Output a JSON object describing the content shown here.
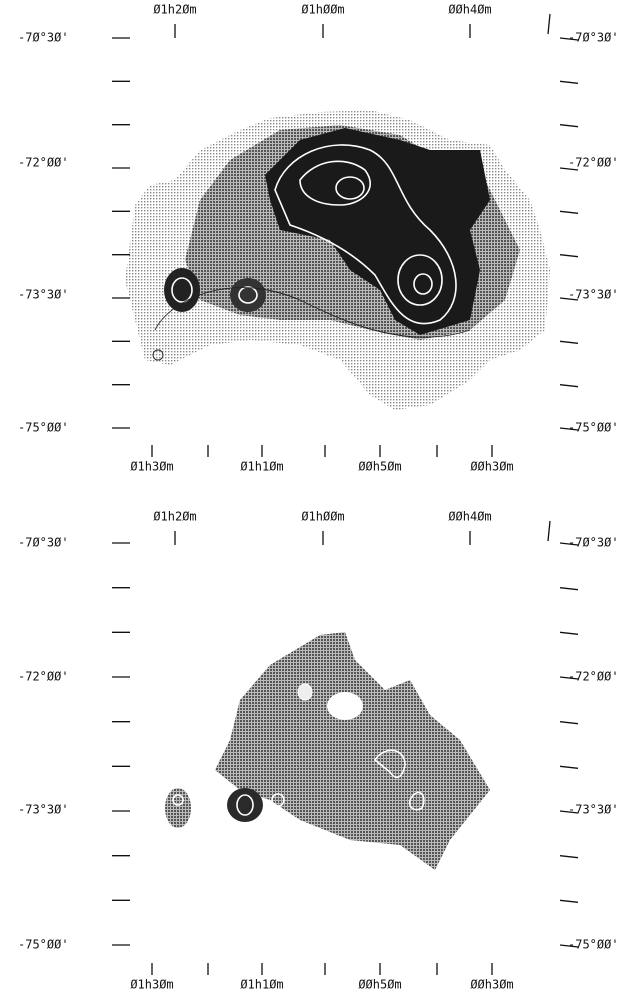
{
  "panels": [
    {
      "top_labels": [
        "Ø1h2Øm",
        "Ø1hØØm",
        "ØØh4Øm"
      ],
      "bottom_labels": [
        "Ø1h3Øm",
        "Ø1h1Øm",
        "ØØh5Øm",
        "ØØh3Øm"
      ],
      "left_labels": [
        "-7Ø°3Ø'",
        "-72°ØØ'",
        "-73°3Ø'",
        "-75°ØØ'"
      ],
      "right_labels": [
        "-7Ø°3Ø'",
        "-72°ØØ'",
        "-73°3Ø'",
        "-75°ØØ'"
      ]
    },
    {
      "top_labels": [
        "Ø1h2Øm",
        "Ø1hØØm",
        "ØØh4Øm"
      ],
      "bottom_labels": [
        "Ø1h3Øm",
        "Ø1h1Øm",
        "ØØh5Øm",
        "ØØh3Øm"
      ],
      "left_labels": [
        "-7Ø°3Ø'",
        "-72°ØØ'",
        "-73°3Ø'",
        "-75°ØØ'"
      ],
      "right_labels": [
        "-7Ø°3Ø'",
        "-72°ØØ'",
        "-73°3Ø'",
        "-75°ØØ'"
      ]
    }
  ]
}
